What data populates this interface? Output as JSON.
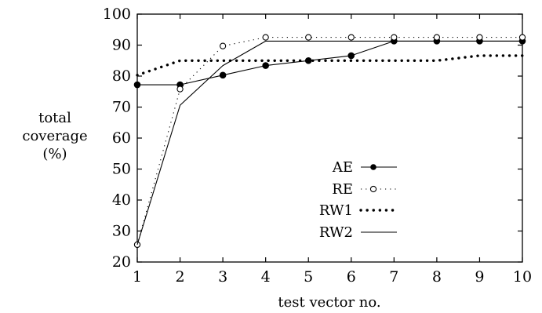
{
  "chart_data": {
    "type": "line",
    "xlabel": "test vector no.",
    "ylabel_lines": [
      "total",
      "coverage",
      "(%)"
    ],
    "xlim": [
      1,
      10
    ],
    "ylim": [
      20,
      100
    ],
    "xticks": [
      1,
      2,
      3,
      4,
      5,
      6,
      7,
      8,
      9,
      10
    ],
    "yticks": [
      20,
      30,
      40,
      50,
      60,
      70,
      80,
      90,
      100
    ],
    "grid": false,
    "legend_position": "lower-right",
    "x": [
      1,
      2,
      3,
      4,
      5,
      6,
      7,
      8,
      9,
      10
    ],
    "series": [
      {
        "name": "AE",
        "style": "solid-filled-dot",
        "values": [
          77.2,
          77.2,
          80.3,
          83.4,
          85.0,
          86.6,
          91.3,
          91.3,
          91.3,
          91.3
        ]
      },
      {
        "name": "RE",
        "style": "dotted-open-circle",
        "values": [
          25.6,
          75.8,
          89.7,
          92.5,
          92.5,
          92.5,
          92.5,
          92.5,
          92.5,
          92.5
        ]
      },
      {
        "name": "RW1",
        "style": "heavy-dotted",
        "values": [
          80.3,
          85.0,
          85.0,
          85.0,
          85.0,
          85.0,
          85.0,
          85.0,
          86.6,
          86.6
        ]
      },
      {
        "name": "RW2",
        "style": "thin-solid",
        "values": [
          25.6,
          70.6,
          83.4,
          91.3,
          91.3,
          91.3,
          91.3,
          91.3,
          91.3,
          91.3
        ]
      }
    ]
  }
}
